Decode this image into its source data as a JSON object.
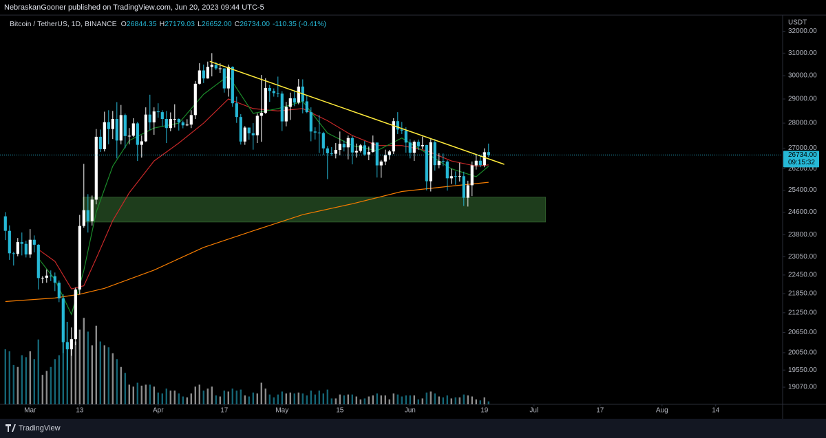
{
  "header": {
    "published": "NebraskanGooner published on TradingView.com, Jun 20, 2023 09:44 UTC-5",
    "brand": "TradingView"
  },
  "chart_data": {
    "type": "candlestick",
    "legend": {
      "symbol": "Bitcoin / TetherUS, 1D, BINANCE",
      "fields": [
        {
          "key": "O",
          "value": "26844.35"
        },
        {
          "key": "H",
          "value": "27179.03"
        },
        {
          "key": "L",
          "value": "26652.00"
        },
        {
          "key": "C",
          "value": "26734.00"
        }
      ],
      "change": "-110.35 (-0.41%)"
    },
    "y_unit": "USDT",
    "log_scale": true,
    "grid": false,
    "up_color": "#ffffff",
    "down_color": "#26b8d6",
    "open": [
      24450,
      23940,
      23170,
      23150,
      23550,
      23490,
      23130,
      23630,
      23460,
      22350,
      22360,
      22430,
      22410,
      22200,
      21700,
      20360,
      20150,
      20450,
      21980,
      24110,
      24670,
      24280,
      25050,
      27450,
      26960,
      28040,
      27760,
      28170,
      27300,
      28330,
      27480,
      27490,
      27990,
      27130,
      27270,
      28350,
      28030,
      28480,
      28450,
      28170,
      27800,
      28170,
      28170,
      28030,
      27910,
      27940,
      28330,
      29650,
      30230,
      29880,
      30390,
      30480,
      30320,
      30320,
      29450,
      30390,
      28820,
      28250,
      27260,
      27820,
      27590,
      27510,
      28300,
      28420,
      29470,
      29340,
      29250,
      29230,
      28070,
      28670,
      29030,
      28850,
      29530,
      28900,
      28450,
      27660,
      27620,
      27600,
      26990,
      26800,
      26780,
      26930,
      27170,
      27030,
      27400,
      26830,
      26890,
      27110,
      26750,
      26850,
      27220,
      26330,
      26480,
      26720,
      26870,
      28080,
      27740,
      27700,
      27220,
      26820,
      27250,
      27070,
      27120,
      25730,
      27230,
      26340,
      26500,
      26480,
      25840,
      25920,
      25900,
      25920,
      25120,
      25580,
      26330,
      26510,
      26340,
      26844.35
    ],
    "high": [
      24600,
      24130,
      23220,
      23690,
      23880,
      23600,
      24000,
      23780,
      23480,
      22410,
      22630,
      22600,
      22530,
      22270,
      21830,
      20370,
      20800,
      22040,
      24500,
      26390,
      25250,
      25200,
      27760,
      27740,
      28470,
      28530,
      28500,
      28870,
      28750,
      28390,
      27800,
      28200,
      28050,
      27500,
      28650,
      29180,
      28650,
      28820,
      28530,
      28500,
      28440,
      28780,
      28190,
      28100,
      28160,
      28530,
      29770,
      30550,
      30490,
      30620,
      31000,
      30600,
      30550,
      30320,
      30490,
      30410,
      29100,
      28370,
      27880,
      27820,
      28000,
      28400,
      30030,
      29890,
      29600,
      29450,
      29960,
      29330,
      28880,
      29270,
      29370,
      29850,
      29840,
      29180,
      28650,
      27830,
      28330,
      27650,
      27080,
      27040,
      27200,
      27660,
      27300,
      27500,
      27480,
      27180,
      27160,
      27280,
      27060,
      27500,
      27220,
      26540,
      26940,
      26930,
      28200,
      28450,
      28050,
      27830,
      27350,
      27300,
      27340,
      27460,
      27130,
      27350,
      27360,
      26800,
      26790,
      26530,
      26200,
      26100,
      26430,
      26090,
      25750,
      26480,
      26770,
      26690,
      26990,
      27179.03
    ],
    "low": [
      23620,
      22950,
      22760,
      23070,
      23100,
      23030,
      23020,
      23200,
      21980,
      22180,
      22200,
      22250,
      21930,
      21580,
      20040,
      19550,
      19960,
      20270,
      21820,
      24050,
      23880,
      24120,
      24880,
      26850,
      26870,
      27150,
      27360,
      26600,
      27150,
      27000,
      27150,
      27440,
      26500,
      26630,
      27240,
      27720,
      27530,
      28220,
      27870,
      27200,
      27670,
      27820,
      27700,
      27790,
      27880,
      27800,
      28170,
      29620,
      29680,
      29870,
      29970,
      30250,
      30120,
      29270,
      29100,
      28670,
      28010,
      27140,
      27130,
      27330,
      26940,
      27200,
      27250,
      28380,
      28880,
      29100,
      29080,
      27680,
      27870,
      28130,
      28700,
      28780,
      28400,
      28410,
      27270,
      27340,
      26810,
      26730,
      25810,
      26700,
      26600,
      26720,
      26870,
      26560,
      26370,
      26630,
      26830,
      26700,
      26530,
      26820,
      25870,
      25860,
      26340,
      26550,
      26770,
      27560,
      27560,
      26820,
      26600,
      26500,
      26930,
      26960,
      25390,
      25350,
      26130,
      26220,
      26300,
      25380,
      25630,
      25600,
      25720,
      24820,
      24800,
      25180,
      26170,
      26260,
      26260,
      26652
    ],
    "close": [
      23940,
      23170,
      23150,
      23550,
      23490,
      23130,
      23630,
      23460,
      22350,
      22360,
      22430,
      22410,
      22200,
      21700,
      20360,
      20150,
      20450,
      21980,
      24110,
      24670,
      24280,
      25050,
      27450,
      26960,
      28040,
      27760,
      28170,
      27300,
      28330,
      27480,
      27490,
      27990,
      27130,
      27270,
      28350,
      28030,
      28480,
      28450,
      28170,
      27800,
      28170,
      28170,
      28030,
      27910,
      27940,
      28330,
      29650,
      30230,
      29880,
      30390,
      30480,
      30320,
      30320,
      29450,
      30390,
      28820,
      28250,
      27260,
      27820,
      27590,
      27510,
      28300,
      28420,
      29470,
      29340,
      29250,
      29230,
      28070,
      28670,
      29030,
      28850,
      29530,
      28900,
      28450,
      27660,
      27620,
      27600,
      26990,
      26800,
      26780,
      26930,
      27170,
      27030,
      27400,
      26830,
      26890,
      27110,
      26750,
      26850,
      27220,
      26330,
      26480,
      26720,
      26870,
      28080,
      27740,
      27700,
      27220,
      26820,
      27250,
      27070,
      27120,
      25730,
      27230,
      26340,
      26500,
      26480,
      25840,
      25920,
      25900,
      25920,
      25120,
      25580,
      26330,
      26510,
      26340,
      26840,
      26734
    ],
    "volume": [
      280,
      270,
      200,
      190,
      250,
      240,
      270,
      230,
      330,
      150,
      170,
      190,
      230,
      250,
      380,
      420,
      300,
      320,
      380,
      440,
      370,
      300,
      400,
      320,
      300,
      290,
      260,
      230,
      190,
      160,
      100,
      90,
      110,
      95,
      100,
      100,
      90,
      60,
      55,
      80,
      70,
      70,
      55,
      40,
      35,
      55,
      90,
      100,
      70,
      80,
      90,
      45,
      40,
      70,
      65,
      80,
      70,
      75,
      45,
      40,
      60,
      55,
      110,
      80,
      50,
      35,
      50,
      65,
      55,
      60,
      55,
      60,
      55,
      45,
      70,
      50,
      70,
      55,
      75,
      30,
      30,
      50,
      45,
      50,
      50,
      40,
      25,
      30,
      40,
      45,
      55,
      45,
      45,
      25,
      55,
      50,
      40,
      45,
      45,
      45,
      25,
      30,
      60,
      65,
      55,
      40,
      35,
      45,
      30,
      35,
      35,
      50,
      45,
      40,
      25,
      20,
      35,
      15
    ],
    "volume_lim": [
      0,
      700
    ],
    "xlim": [
      -1.3,
      188.2
    ],
    "xticks": [
      {
        "value": 6,
        "label": "Mar"
      },
      {
        "value": 18,
        "label": "13"
      },
      {
        "value": 37,
        "label": "Apr"
      },
      {
        "value": 53,
        "label": "17"
      },
      {
        "value": 67,
        "label": "May"
      },
      {
        "value": 81,
        "label": "15"
      },
      {
        "value": 98,
        "label": "Jun"
      },
      {
        "value": 116,
        "label": "19"
      },
      {
        "value": 128,
        "label": "Jul"
      },
      {
        "value": 144,
        "label": "17"
      },
      {
        "value": 159,
        "label": "Aug"
      },
      {
        "value": 172,
        "label": "14"
      }
    ],
    "ylim": [
      18600,
      32600
    ],
    "yticks": [
      {
        "value": 32000,
        "label": "32000.00"
      },
      {
        "value": 31000,
        "label": "31000.00"
      },
      {
        "value": 30000,
        "label": "30000.00"
      },
      {
        "value": 29000,
        "label": "29000.00"
      },
      {
        "value": 28000,
        "label": "28000.00"
      },
      {
        "value": 27000,
        "label": "27000.00"
      },
      {
        "value": 26200,
        "label": "26200.00"
      },
      {
        "value": 25400,
        "label": "25400.00"
      },
      {
        "value": 24600,
        "label": "24600.00"
      },
      {
        "value": 23800,
        "label": "23800.00"
      },
      {
        "value": 23050,
        "label": "23050.00"
      },
      {
        "value": 22450,
        "label": "22450.00"
      },
      {
        "value": 21850,
        "label": "21850.00"
      },
      {
        "value": 21250,
        "label": "21250.00"
      },
      {
        "value": 20650,
        "label": "20650.00"
      },
      {
        "value": 20050,
        "label": "20050.00"
      },
      {
        "value": 19550,
        "label": "19550.00"
      },
      {
        "value": 19070,
        "label": "19070.00"
      }
    ],
    "last_price": {
      "value": 26734,
      "label": "26734.00",
      "countdown": "09:15:32",
      "color": "#26b8d6"
    },
    "zone": {
      "x": [
        18.8,
        130.8
      ],
      "y": [
        24250,
        25140
      ],
      "color": "#1e3d1c"
    },
    "overlays": [
      {
        "color": "#f57c00",
        "x": [
          0,
          12,
          18,
          24,
          36,
          48,
          60,
          72,
          84,
          96,
          108,
          117
        ],
        "values": [
          21600,
          21710,
          21830,
          22020,
          22610,
          23370,
          23940,
          24510,
          24900,
          25350,
          25550,
          25690
        ]
      },
      {
        "color": "#c62828",
        "x": [
          8,
          12,
          16,
          19,
          22,
          26,
          30,
          36,
          42,
          48,
          54,
          60,
          66,
          72,
          78,
          84,
          90,
          96,
          102,
          108,
          114,
          117
        ],
        "values": [
          23300,
          22900,
          22000,
          22100,
          23000,
          24300,
          25300,
          26500,
          27200,
          28000,
          29000,
          28600,
          28500,
          28600,
          28100,
          27500,
          27100,
          27100,
          26900,
          26500,
          26300,
          26350
        ]
      },
      {
        "color": "#1b8a2a",
        "x": [
          8,
          12,
          16,
          19,
          22,
          26,
          30,
          36,
          42,
          48,
          54,
          60,
          66,
          72,
          78,
          84,
          90,
          96,
          102,
          108,
          114,
          117
        ],
        "values": [
          23000,
          22300,
          21200,
          22600,
          24600,
          26300,
          27300,
          27800,
          28000,
          29200,
          30000,
          28400,
          28600,
          28900,
          27600,
          27100,
          26900,
          27400,
          26800,
          26200,
          25900,
          26300
        ]
      },
      {
        "color": "#ffeb3b",
        "x": [
          49.5,
          120.8
        ],
        "values": [
          30630,
          26370
        ]
      }
    ]
  }
}
